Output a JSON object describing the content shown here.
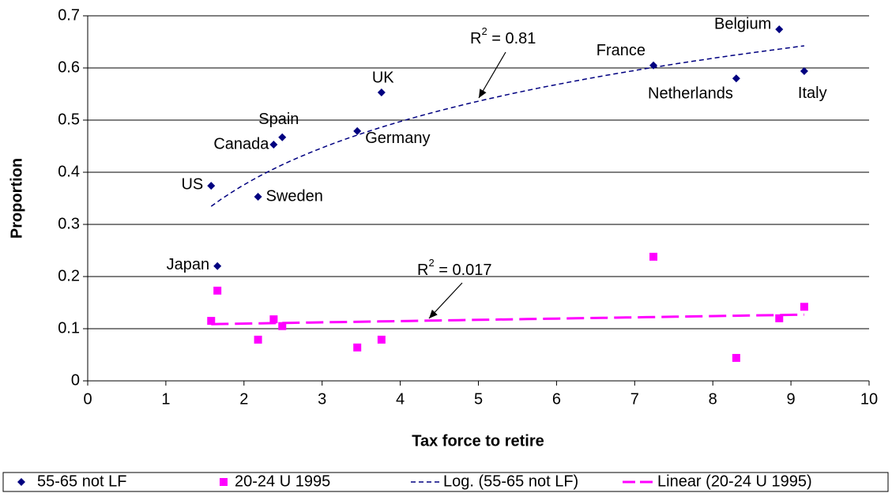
{
  "chart_data": {
    "type": "scatter",
    "xlabel": "Tax force to retire",
    "ylabel": "Proportion",
    "xlim": [
      0,
      10
    ],
    "ylim": [
      0,
      0.7
    ],
    "xticks": [
      0,
      1,
      2,
      3,
      4,
      5,
      6,
      7,
      8,
      9,
      10
    ],
    "yticks": [
      0,
      0.1,
      0.2,
      0.3,
      0.4,
      0.5,
      0.6,
      0.7
    ],
    "grid": true,
    "legend": "bottom",
    "series": [
      {
        "name": "55-65 not LF",
        "color": "#000080",
        "marker": "diamond",
        "labels": [
          "US",
          "Japan",
          "Sweden",
          "Canada",
          "Spain",
          "Germany",
          "UK",
          "France",
          "Netherlands",
          "Belgium",
          "Italy"
        ],
        "x": [
          1.58,
          1.66,
          2.18,
          2.38,
          2.49,
          3.45,
          3.76,
          7.24,
          8.3,
          8.85,
          9.17
        ],
        "values": [
          0.374,
          0.22,
          0.353,
          0.453,
          0.467,
          0.479,
          0.553,
          0.605,
          0.58,
          0.674,
          0.594
        ]
      },
      {
        "name": "20-24 U 1995",
        "color": "#ff00ff",
        "marker": "square",
        "x": [
          1.58,
          1.66,
          2.18,
          2.38,
          2.49,
          3.45,
          3.76,
          7.24,
          8.3,
          8.85,
          9.17
        ],
        "values": [
          0.115,
          0.173,
          0.079,
          0.118,
          0.105,
          0.064,
          0.079,
          0.238,
          0.044,
          0.12,
          0.142
        ]
      }
    ],
    "trendlines": [
      {
        "name": "Log. (55-65 not LF)",
        "kind": "log",
        "series": 0,
        "color": "#000080",
        "r2": {
          "base": "R",
          "sup": "2",
          "rest": " = 0.81"
        }
      },
      {
        "name": "Linear (20-24 U 1995)",
        "kind": "linear",
        "series": 1,
        "color": "#ff00ff",
        "r2": {
          "base": "R",
          "sup": "2",
          "rest": " = 0.017"
        }
      }
    ]
  }
}
